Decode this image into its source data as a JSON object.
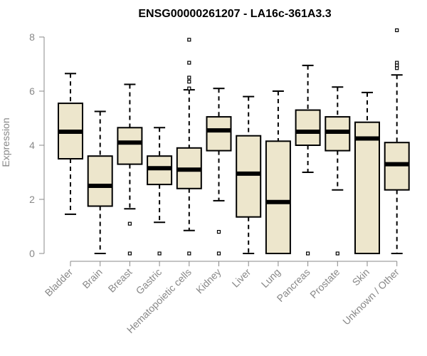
{
  "chart_data": {
    "type": "box",
    "title": "ENSG00000261207 - LA16c-361A3.3",
    "xlabel": "",
    "ylabel": "Expression",
    "ylim": [
      0,
      8.3
    ],
    "yticks": [
      0,
      2,
      4,
      6,
      8
    ],
    "colors": {
      "box_fill": "#ede6cc",
      "box_stroke": "#000000",
      "axis": "#888888"
    },
    "categories": [
      "Bladder",
      "Brain",
      "Breast",
      "Gastric",
      "Hematopoietic cells",
      "Kidney",
      "Liver",
      "Lung",
      "Pancreas",
      "Prostate",
      "Skin",
      "Unknown / Other"
    ],
    "boxes": [
      {
        "name": "Bladder",
        "whisker_low": 1.45,
        "q1": 3.5,
        "median": 4.5,
        "q3": 5.55,
        "whisker_high": 6.65,
        "outliers": []
      },
      {
        "name": "Brain",
        "whisker_low": 0.0,
        "q1": 1.75,
        "median": 2.5,
        "q3": 3.6,
        "whisker_high": 5.25,
        "outliers": []
      },
      {
        "name": "Breast",
        "whisker_low": 1.65,
        "q1": 3.3,
        "median": 4.1,
        "q3": 4.65,
        "whisker_high": 6.25,
        "outliers": [
          1.1,
          0.0
        ]
      },
      {
        "name": "Gastric",
        "whisker_low": 1.15,
        "q1": 2.55,
        "median": 3.15,
        "q3": 3.6,
        "whisker_high": 4.65,
        "outliers": [
          0.0
        ]
      },
      {
        "name": "Hematopoietic cells",
        "whisker_low": 0.85,
        "q1": 2.4,
        "median": 3.1,
        "q3": 3.9,
        "whisker_high": 6.05,
        "outliers": [
          7.9,
          7.05,
          6.5,
          6.35,
          6.1,
          0.0
        ]
      },
      {
        "name": "Kidney",
        "whisker_low": 1.95,
        "q1": 3.8,
        "median": 4.55,
        "q3": 5.05,
        "whisker_high": 6.1,
        "outliers": [
          0.8,
          0.0
        ]
      },
      {
        "name": "Liver",
        "whisker_low": 0.0,
        "q1": 1.35,
        "median": 2.95,
        "q3": 4.35,
        "whisker_high": 5.8,
        "outliers": []
      },
      {
        "name": "Lung",
        "whisker_low": 0.0,
        "q1": 0.0,
        "median": 1.9,
        "q3": 4.15,
        "whisker_high": 6.0,
        "outliers": []
      },
      {
        "name": "Pancreas",
        "whisker_low": 3.0,
        "q1": 4.0,
        "median": 4.5,
        "q3": 5.3,
        "whisker_high": 6.95,
        "outliers": [
          0.0
        ]
      },
      {
        "name": "Prostate",
        "whisker_low": 2.35,
        "q1": 3.8,
        "median": 4.5,
        "q3": 5.05,
        "whisker_high": 6.15,
        "outliers": [
          0.0
        ]
      },
      {
        "name": "Skin",
        "whisker_low": 0.0,
        "q1": 0.0,
        "median": 4.25,
        "q3": 4.85,
        "whisker_high": 5.95,
        "outliers": []
      },
      {
        "name": "Unknown / Other",
        "whisker_low": 0.0,
        "q1": 2.35,
        "median": 3.3,
        "q3": 4.1,
        "whisker_high": 6.6,
        "outliers": [
          8.25,
          7.05,
          6.95,
          6.85
        ]
      }
    ]
  }
}
